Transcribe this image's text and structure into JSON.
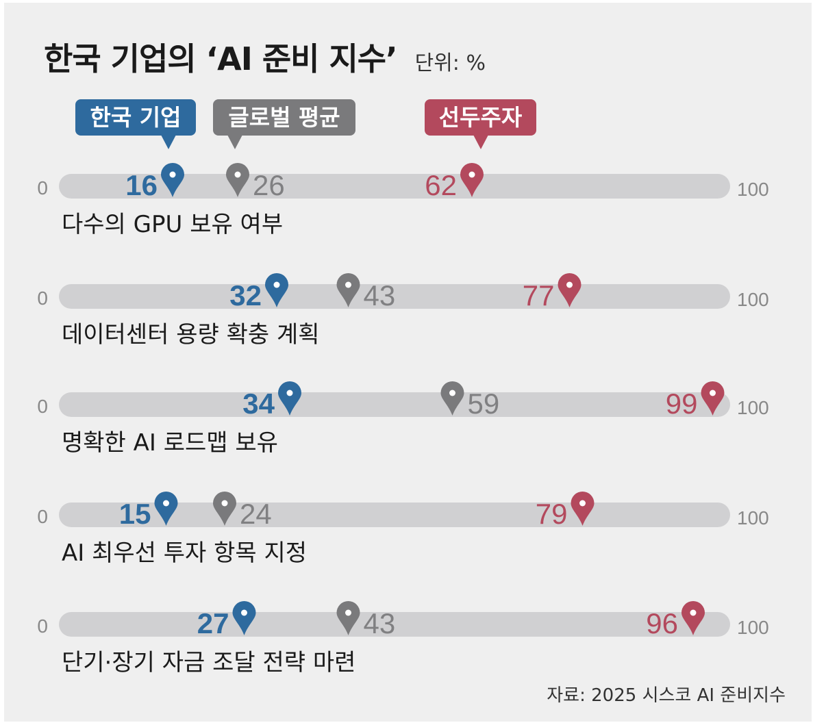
{
  "title": "한국 기업의 ‘AI 준비 지수’",
  "unit_label": "단위: %",
  "source": "자료: 2025 시스코 AI 준비지수",
  "chart_data": {
    "type": "scatter",
    "axis_min_label": "0",
    "axis_max_label": "100",
    "xlim": [
      0,
      100
    ],
    "legend": [
      {
        "name": "한국 기업",
        "color": "#2e6a9e"
      },
      {
        "name": "글로벌 평균",
        "color": "#7a7a7c"
      },
      {
        "name": "선두주자",
        "color": "#b3495d"
      }
    ],
    "categories": [
      "다수의 GPU 보유 여부",
      "데이터센터 용량 확충 계획",
      "명확한 AI 로드맵 보유",
      "AI 최우선 투자 항목 지정",
      "단기·장기 자금 조달 전략 마련"
    ],
    "series": [
      {
        "name": "한국 기업",
        "values": [
          16,
          32,
          34,
          15,
          27
        ],
        "color": "#2e6a9e"
      },
      {
        "name": "글로벌 평균",
        "values": [
          26,
          43,
          59,
          24,
          43
        ],
        "color": "#7a7a7c"
      },
      {
        "name": "선두주자",
        "values": [
          62,
          77,
          99,
          79,
          96
        ],
        "color": "#b3495d"
      }
    ]
  }
}
